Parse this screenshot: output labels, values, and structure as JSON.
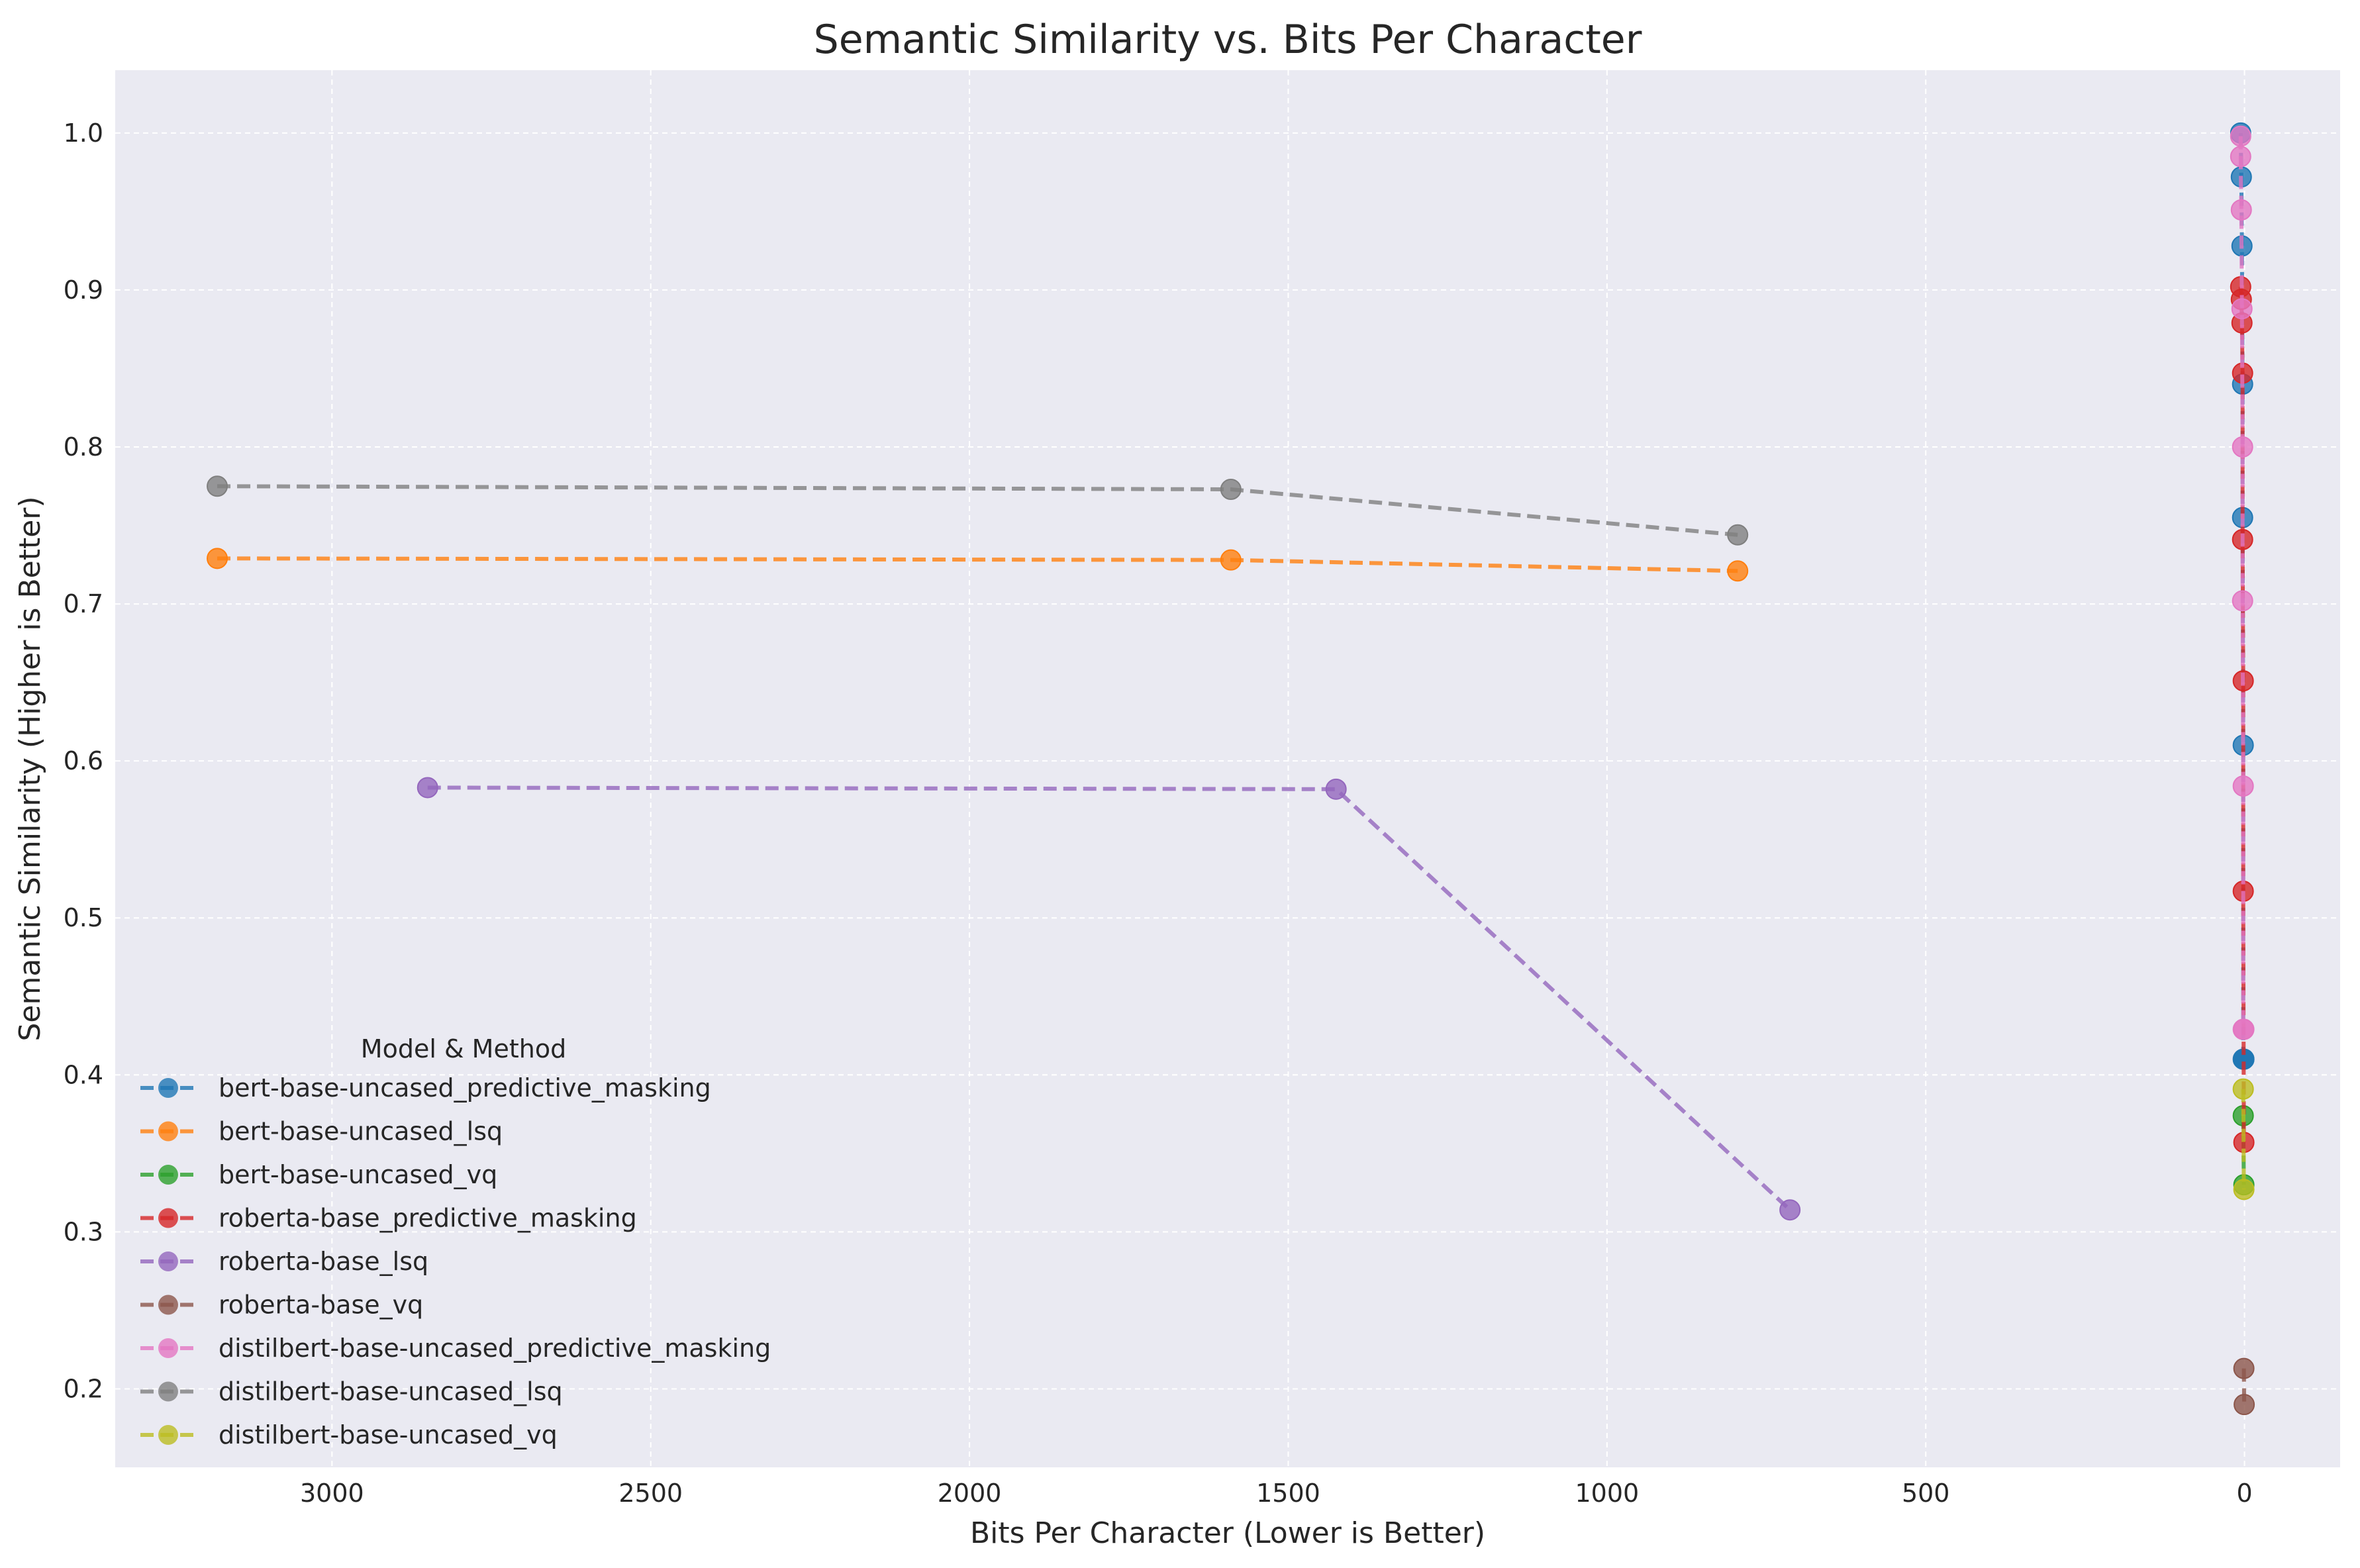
{
  "chart_data": {
    "type": "line",
    "title": "Semantic Similarity vs. Bits Per Character",
    "xlabel": "Bits Per Character (Lower is Better)",
    "ylabel": "Semantic Similarity (Higher is Better)",
    "xlim": [
      3340,
      -150
    ],
    "ylim": [
      0.15,
      1.04
    ],
    "x_reversed": true,
    "x_ticks": [
      3000,
      2500,
      2000,
      1500,
      1000,
      500,
      0
    ],
    "y_ticks": [
      0.2,
      0.3,
      0.4,
      0.5,
      0.6,
      0.7,
      0.8,
      0.9,
      1.0
    ],
    "grid": true,
    "legend": {
      "title": "Model & Method",
      "position": "lower-left"
    },
    "series": [
      {
        "name": "bert-base-uncased_predictive_masking",
        "color": "#1f77b4",
        "x": [
          6,
          5,
          4,
          3,
          3,
          2,
          2,
          1,
          1
        ],
        "y": [
          1.0,
          0.972,
          0.928,
          0.84,
          0.755,
          0.61,
          0.41,
          0.41,
          0.41
        ]
      },
      {
        "name": "bert-base-uncased_lsq",
        "color": "#ff7f0e",
        "x": [
          3180,
          1590,
          795
        ],
        "y": [
          0.729,
          0.728,
          0.721
        ]
      },
      {
        "name": "bert-base-uncased_vq",
        "color": "#2ca02c",
        "x": [
          2,
          1
        ],
        "y": [
          0.374,
          0.33
        ]
      },
      {
        "name": "roberta-base_predictive_masking",
        "color": "#d62728",
        "x": [
          6,
          5,
          4,
          3,
          3,
          2,
          2,
          1
        ],
        "y": [
          0.902,
          0.894,
          0.879,
          0.847,
          0.741,
          0.651,
          0.517,
          0.357
        ]
      },
      {
        "name": "roberta-base_lsq",
        "color": "#9467bd",
        "x": [
          2850,
          1425,
          713
        ],
        "y": [
          0.583,
          0.582,
          0.314
        ]
      },
      {
        "name": "roberta-base_vq",
        "color": "#8c564b",
        "x": [
          1,
          0.5
        ],
        "y": [
          0.213,
          0.19
        ]
      },
      {
        "name": "distilbert-base-uncased_predictive_masking",
        "color": "#e377c2",
        "x": [
          6,
          6,
          5,
          4,
          3,
          3,
          2,
          2,
          1
        ],
        "y": [
          0.998,
          0.985,
          0.951,
          0.888,
          0.8,
          0.702,
          0.584,
          0.429,
          0.429
        ]
      },
      {
        "name": "distilbert-base-uncased_lsq",
        "color": "#7f7f7f",
        "x": [
          3180,
          1590,
          795
        ],
        "y": [
          0.775,
          0.773,
          0.744
        ]
      },
      {
        "name": "distilbert-base-uncased_vq",
        "color": "#bcbd22",
        "x": [
          2,
          1
        ],
        "y": [
          0.391,
          0.327
        ]
      }
    ]
  }
}
